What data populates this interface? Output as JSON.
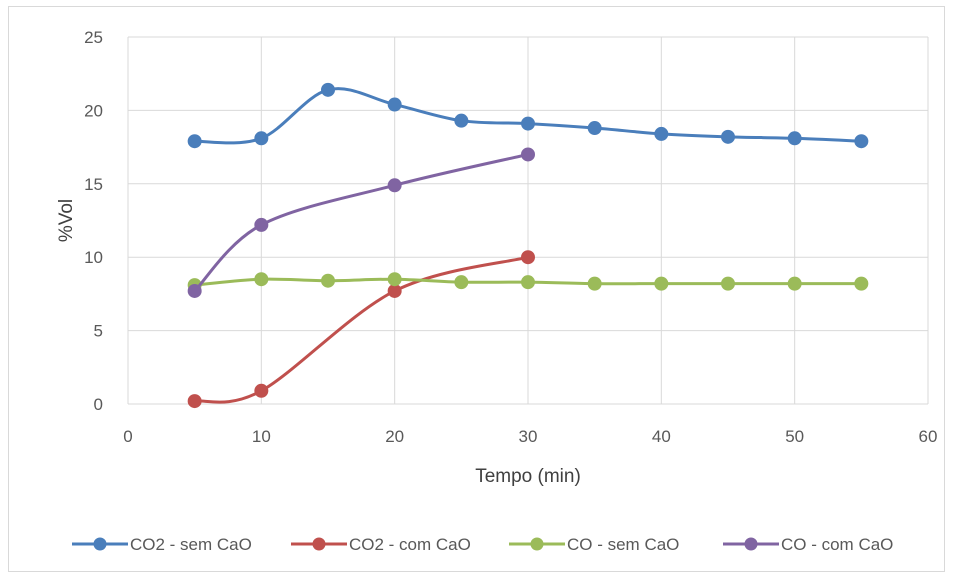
{
  "chart_data": {
    "type": "line",
    "title": "",
    "xlabel": "Tempo (min)",
    "ylabel": "%Vol",
    "xlim": [
      0,
      60
    ],
    "ylim": [
      0,
      25
    ],
    "xticks": [
      0,
      10,
      20,
      30,
      40,
      50,
      60
    ],
    "yticks": [
      0,
      5,
      10,
      15,
      20,
      25
    ],
    "grid": true,
    "legend_position": "bottom",
    "smooth": true,
    "series": [
      {
        "name": "CO2 - sem CaO",
        "color": "#4a7ebb",
        "x": [
          5,
          10,
          15,
          20,
          25,
          30,
          35,
          40,
          45,
          50,
          55
        ],
        "y": [
          17.9,
          18.1,
          21.4,
          20.4,
          19.3,
          19.1,
          18.8,
          18.4,
          18.2,
          18.1,
          17.9
        ]
      },
      {
        "name": "CO2 - com CaO",
        "color": "#c0504d",
        "x": [
          5,
          10,
          20,
          30
        ],
        "y": [
          0.2,
          0.9,
          7.7,
          10.0
        ]
      },
      {
        "name": "CO - sem CaO",
        "color": "#9bbb59",
        "x": [
          5,
          10,
          15,
          20,
          25,
          30,
          35,
          40,
          45,
          50,
          55
        ],
        "y": [
          8.1,
          8.5,
          8.4,
          8.5,
          8.3,
          8.3,
          8.2,
          8.2,
          8.2,
          8.2,
          8.2
        ]
      },
      {
        "name": "CO - com CaO",
        "color": "#8064a2",
        "x": [
          5,
          10,
          20,
          30
        ],
        "y": [
          7.7,
          12.2,
          14.9,
          17.0
        ]
      }
    ]
  }
}
